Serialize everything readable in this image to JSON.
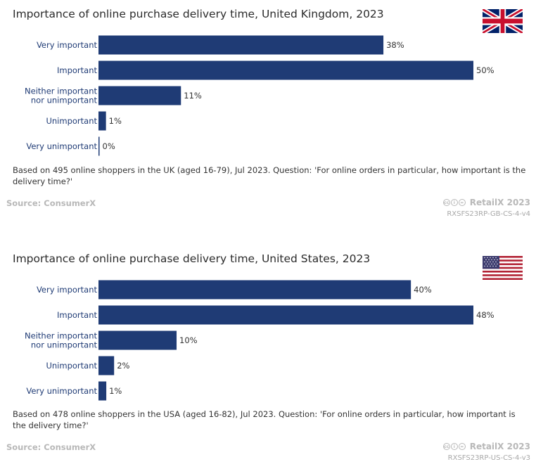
{
  "chart_data": [
    {
      "type": "bar",
      "orientation": "horizontal",
      "title": "Importance of online purchase delivery time, United Kingdom, 2023",
      "flag": "uk-flag",
      "categories": [
        [
          "Very important"
        ],
        [
          "Important"
        ],
        [
          "Neither important",
          "nor unimportant"
        ],
        [
          "Unimportant"
        ],
        [
          "Very unimportant"
        ]
      ],
      "values": [
        38,
        50,
        11,
        1,
        0
      ],
      "value_labels": [
        "38%",
        "50%",
        "11%",
        "1%",
        "0%"
      ],
      "unit": "%",
      "xlim": [
        0,
        50
      ],
      "bar_color": "#1f3b75",
      "note": "Based on 495 online shoppers in the UK (aged 16-79), Jul 2023. Question: 'For online orders in particular, how important is the delivery time?'",
      "source": "Source: ConsumerX",
      "brand": "RetailX 2023",
      "code": "RXSFS23RP-GB-CS-4-v4"
    },
    {
      "type": "bar",
      "orientation": "horizontal",
      "title": "Importance of online purchase delivery time, United States, 2023",
      "flag": "us-flag",
      "categories": [
        [
          "Very important"
        ],
        [
          "Important"
        ],
        [
          "Neither important",
          "nor unimportant"
        ],
        [
          "Unimportant"
        ],
        [
          "Very unimportant"
        ]
      ],
      "values": [
        40,
        48,
        10,
        2,
        1
      ],
      "value_labels": [
        "40%",
        "48%",
        "10%",
        "2%",
        "1%"
      ],
      "unit": "%",
      "xlim": [
        0,
        48
      ],
      "bar_color": "#1f3b75",
      "note": "Based on 478 online shoppers in the USA (aged 16-82), Jul 2023. Question: 'For online orders in particular, how important is the delivery time?'",
      "source": "Source: ConsumerX",
      "brand": "RetailX 2023",
      "code": "RXSFS23RP-US-CS-4-v3"
    }
  ],
  "cc_icons": [
    "cc",
    "by",
    "nd"
  ]
}
